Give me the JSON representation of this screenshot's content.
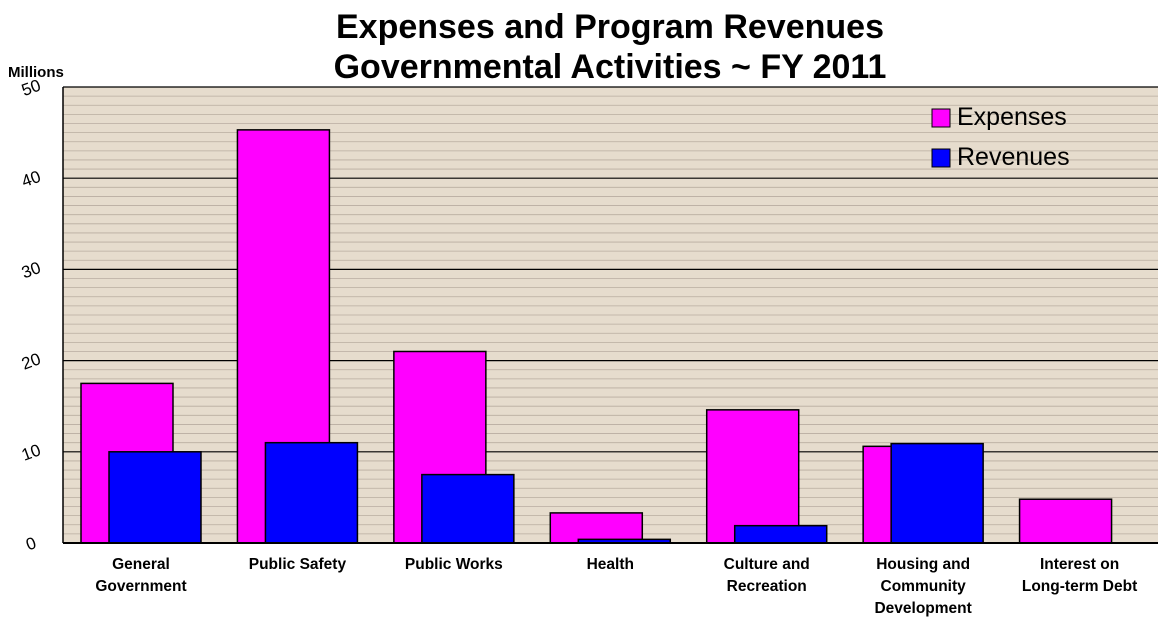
{
  "chart_data": {
    "type": "bar",
    "title": [
      "Expenses and Program Revenues",
      "Governmental Activities ~ FY 2011"
    ],
    "unit_label": "Millions",
    "categories": [
      [
        "General",
        "Government"
      ],
      [
        "Public Safety"
      ],
      [
        "Public Works"
      ],
      [
        "Health"
      ],
      [
        "Culture and",
        "Recreation"
      ],
      [
        "Housing and",
        "Community",
        "Development"
      ],
      [
        "Interest on",
        "Long-term Debt"
      ]
    ],
    "series": [
      {
        "name": "Expenses",
        "color": "#ff00ff",
        "values": [
          17.5,
          45.3,
          21.0,
          3.3,
          14.6,
          10.6,
          4.8
        ]
      },
      {
        "name": "Revenues",
        "color": "#0000ff",
        "values": [
          10.0,
          11.0,
          7.5,
          0.4,
          1.9,
          10.9,
          0
        ]
      }
    ],
    "ylim": [
      0,
      50
    ],
    "yticks": [
      0,
      10,
      20,
      30,
      40,
      50
    ],
    "grid": true,
    "legend_position": "top-right",
    "plot_background": "#e6dccd"
  }
}
